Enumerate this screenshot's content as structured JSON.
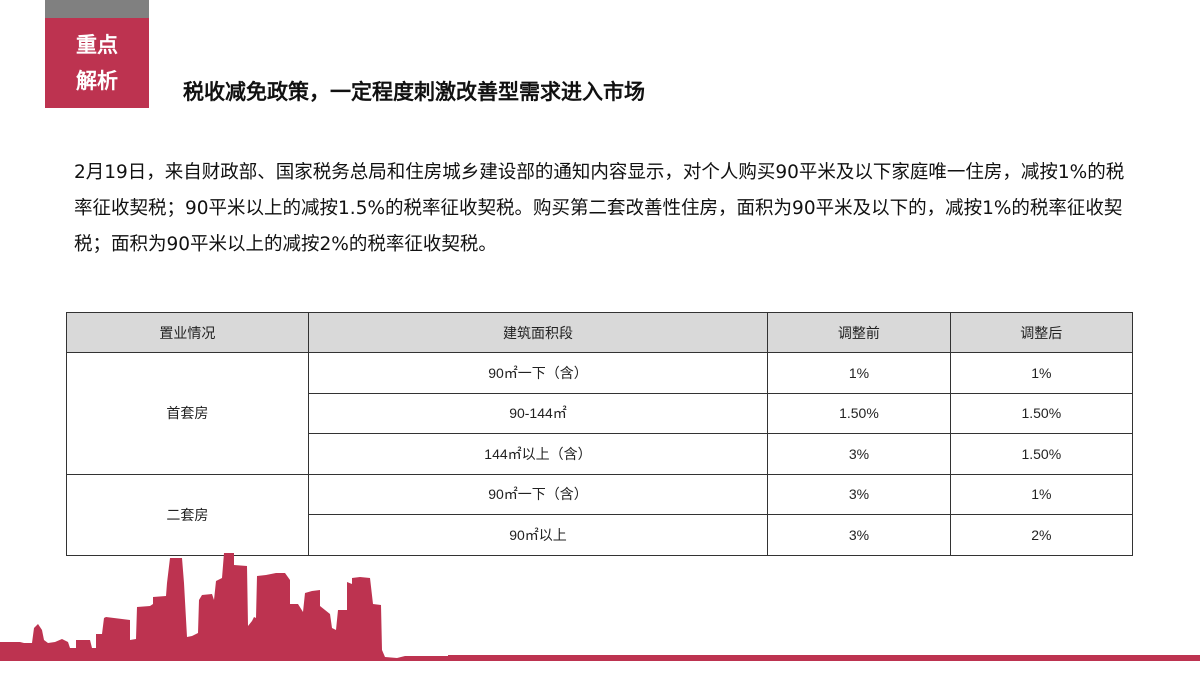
{
  "badge": {
    "line1": "重点",
    "line2": "解析"
  },
  "title": "税收减免政策，一定程度刺激改善型需求进入市场",
  "paragraph": "2月19日，来自财政部、国家税务总局和住房城乡建设部的通知内容显示，对个人购买90平米及以下家庭唯一住房，减按1%的税率征收契税；90平米以上的减按1.5%的税率征收契税。购买第二套改善性住房，面积为90平米及以下的，减按1%的税率征收契税；面积为90平米以上的减按2%的税率征收契税。",
  "table": {
    "headers": [
      "置业情况",
      "建筑面积段",
      "调整前",
      "调整后"
    ],
    "groups": [
      {
        "label": "首套房",
        "rows": [
          {
            "area": "90㎡一下（含）",
            "before": "1%",
            "after": "1%"
          },
          {
            "area": "90-144㎡",
            "before": "1.50%",
            "after": "1.50%"
          },
          {
            "area": "144㎡以上（含）",
            "before": "3%",
            "after": "1.50%"
          }
        ]
      },
      {
        "label": "二套房",
        "rows": [
          {
            "area": "90㎡一下（含）",
            "before": "3%",
            "after": "1%"
          },
          {
            "area": "90㎡以上",
            "before": "3%",
            "after": "2%"
          }
        ]
      }
    ]
  },
  "colors": {
    "accent": "#bd3350",
    "gray": "#808080",
    "header_bg": "#d9d9d9"
  }
}
